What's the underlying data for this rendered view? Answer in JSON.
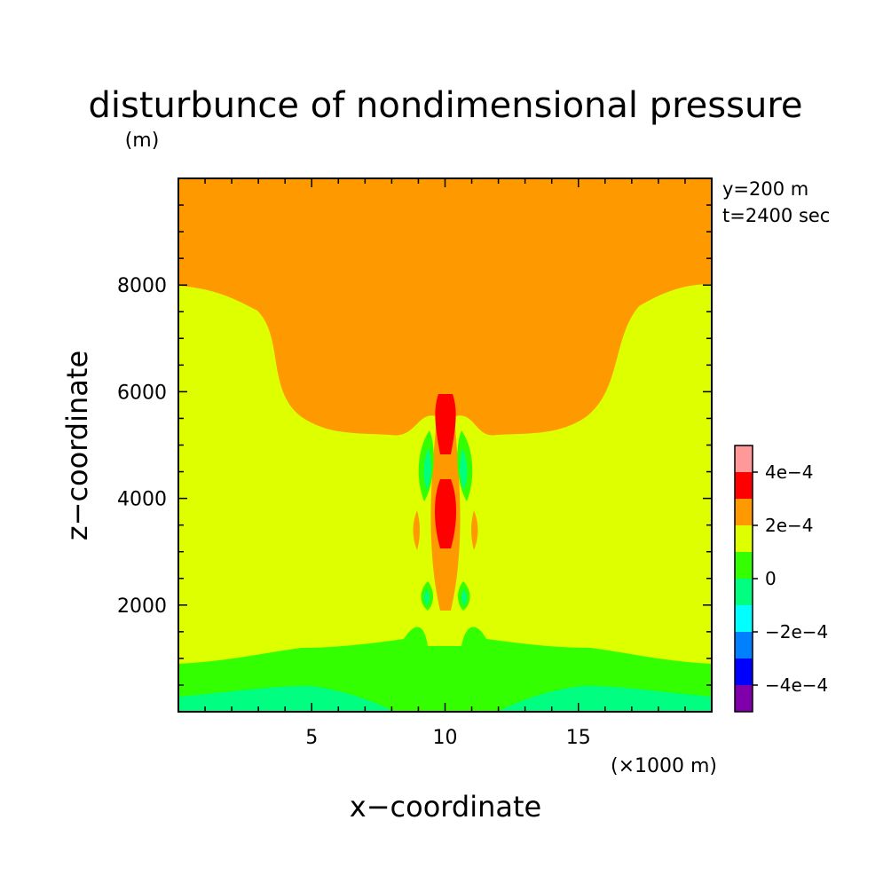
{
  "chart_data": {
    "type": "heatmap",
    "title": "disturbunce of nondimensional pressure",
    "y_unit": "(m)",
    "x_unit": "(×1000 m)",
    "xlabel": "x−coordinate",
    "ylabel": "z−coordinate",
    "annotations": [
      "y=200 m",
      "t=2400 sec"
    ],
    "xlim": [
      0,
      20
    ],
    "ylim": [
      0,
      10000
    ],
    "x_ticks": [
      5,
      10,
      15
    ],
    "y_ticks": [
      2000,
      4000,
      6000,
      8000
    ],
    "colorbar": {
      "levels": [
        "-5e-4",
        "-4e-4",
        "-3e-4",
        "-2e-4",
        "-1e-4",
        "0",
        "1e-4",
        "2e-4",
        "3e-4",
        "4e-4",
        "5e-4"
      ],
      "labels": [
        "4e−4",
        "2e−4",
        "0",
        "−2e−4",
        "−4e−4"
      ],
      "colors": [
        "#7f00aa",
        "#0000ff",
        "#0080ff",
        "#00ffff",
        "#00ff80",
        "#33ff00",
        "#ddff00",
        "#ff9900",
        "#ff0000",
        "#ff9999"
      ]
    },
    "regions": [
      {
        "level_range": [
          "2e-4",
          "3e-4"
        ],
        "color": "#ff9900",
        "description": "upper layer above ~5200-8000 m, dipping to ~5200 m near center"
      },
      {
        "level_range": [
          "1e-4",
          "2e-4"
        ],
        "color": "#ddff00",
        "description": "middle layer ~1000-8000 m"
      },
      {
        "level_range": [
          "0",
          "1e-4"
        ],
        "color": "#33ff00",
        "description": "near-surface layer below ~1000 m"
      },
      {
        "level_range": [
          "-1e-4",
          "0"
        ],
        "color": "#00ff80",
        "description": "surface lobes near x=5 and x=15"
      },
      {
        "level_range": [
          "3e-4",
          "4e-4"
        ],
        "color": "#ff0000",
        "description": "central column cells at x=10, z~3200-4300 and z~4900-5900 m"
      }
    ]
  }
}
